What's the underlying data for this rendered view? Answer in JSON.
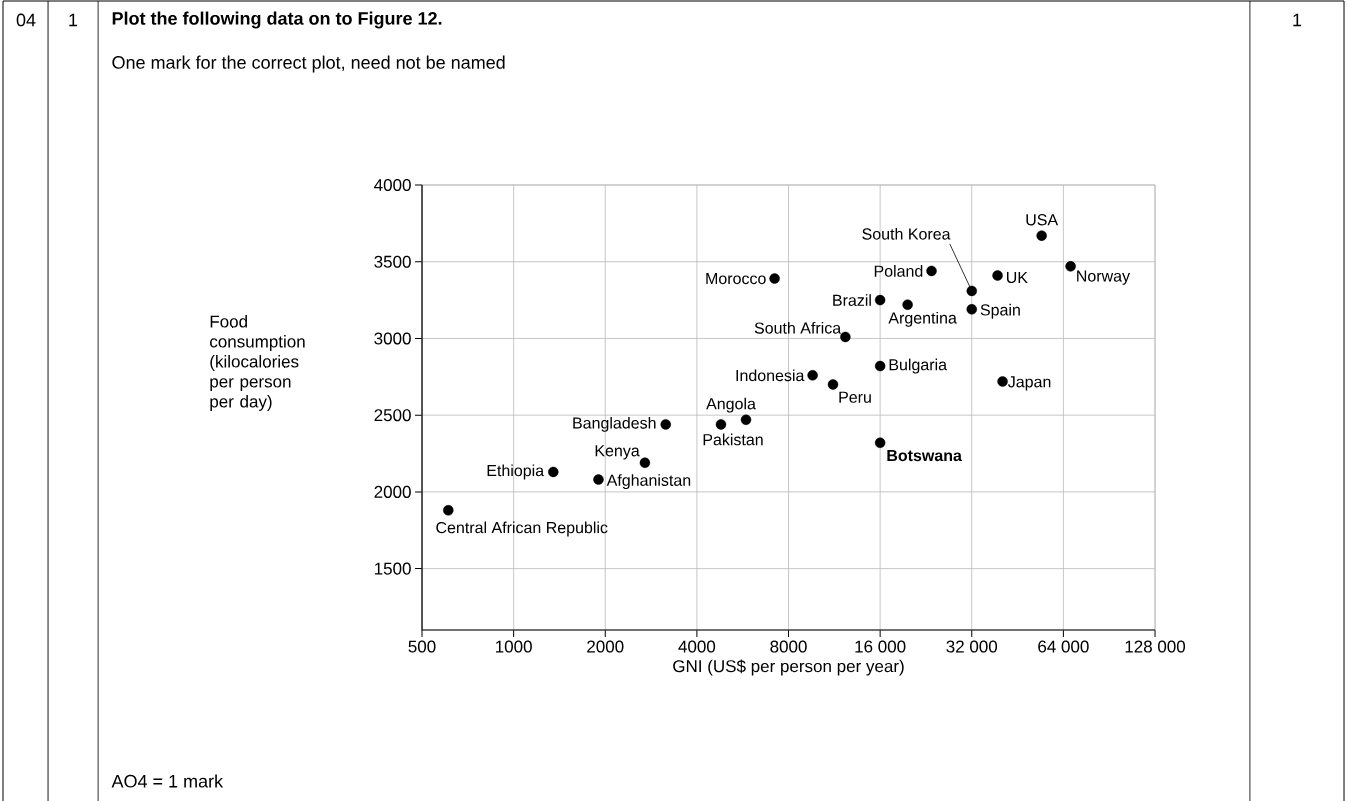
{
  "chart_data": {
    "type": "scatter",
    "title": "Plot the following data on to Figure 12.",
    "subtitle": "One mark for the correct plot, need not be named",
    "xlabel": "GNI (US$ per person per year)",
    "ylabel": "Food consumption (kilocalories per person per day)",
    "log": "x",
    "grid": true,
    "marker": "circle",
    "xlim": [
      500,
      128000
    ],
    "ylim": [
      1100,
      4000
    ],
    "xticks": [
      500,
      1000,
      2000,
      4000,
      8000,
      {
        "value": 16000,
        "label": "16 000"
      },
      {
        "value": 32000,
        "label": "32 000"
      },
      {
        "value": 64000,
        "label": "64 000"
      },
      {
        "value": 128000,
        "label": "128 000"
      }
    ],
    "yticks": [
      1500,
      2000,
      2500,
      3000,
      3500,
      4000
    ],
    "series": [
      {
        "color": "#000000",
        "x": [
          610,
          1350,
          1900,
          2700,
          3160,
          4800,
          5800,
          7200,
          12300,
          9600,
          11200,
          16000,
          16000,
          16000,
          19700,
          23600,
          32000,
          32000,
          38900,
          40400,
          54300,
          67600
        ],
        "values": [
          1880,
          2130,
          2080,
          2190,
          2440,
          2440,
          2470,
          3390,
          3010,
          2760,
          2700,
          3250,
          2820,
          2320,
          3220,
          3440,
          3310,
          3190,
          3410,
          2720,
          3670,
          3470
        ]
      }
    ],
    "annotations": [
      {
        "text": "Central African Republic",
        "x": 610,
        "y": 1880
      },
      {
        "text": "Ethiopia",
        "x": 1350,
        "y": 2130
      },
      {
        "text": "Afghanistan",
        "x": 1900,
        "y": 2080
      },
      {
        "text": "Kenya",
        "x": 2700,
        "y": 2190
      },
      {
        "text": "Bangladesh",
        "x": 3160,
        "y": 2440
      },
      {
        "text": "Pakistan",
        "x": 4800,
        "y": 2440
      },
      {
        "text": "Angola",
        "x": 5800,
        "y": 2470
      },
      {
        "text": "Morocco",
        "x": 7200,
        "y": 3390
      },
      {
        "text": "South Africa",
        "x": 12300,
        "y": 3010
      },
      {
        "text": "Indonesia",
        "x": 9600,
        "y": 2760
      },
      {
        "text": "Peru",
        "x": 11200,
        "y": 2700
      },
      {
        "text": "Brazil",
        "x": 16000,
        "y": 3250
      },
      {
        "text": "Bulgaria",
        "x": 16000,
        "y": 2820
      },
      {
        "text": "**Botswana**",
        "x": 16000,
        "y": 2320
      },
      {
        "text": "Argentina",
        "x": 19700,
        "y": 3220
      },
      {
        "text": "Poland",
        "x": 23600,
        "y": 3440
      },
      {
        "text": "South Korea",
        "x": 32000,
        "y": 3310
      },
      {
        "text": "Spain",
        "x": 32000,
        "y": 3190
      },
      {
        "text": "UK",
        "x": 38900,
        "y": 3410
      },
      {
        "text": "Japan",
        "x": 40400,
        "y": 2720
      },
      {
        "text": "USA",
        "x": 54300,
        "y": 3670
      },
      {
        "text": "Norway",
        "x": 67600,
        "y": 3470
      },
      "04",
      "1",
      "1",
      "AO4 = 1 mark"
    ]
  }
}
